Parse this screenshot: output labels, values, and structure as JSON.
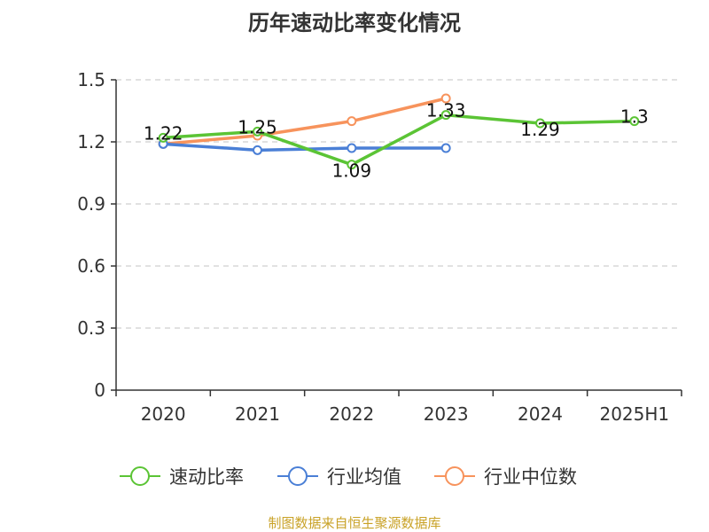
{
  "chart_data": {
    "type": "line",
    "title": "历年速动比率变化情况",
    "categories": [
      "2020",
      "2021",
      "2022",
      "2023",
      "2024",
      "2025H1"
    ],
    "ylim": [
      0,
      1.5
    ],
    "yticks": [
      "0",
      "0.3",
      "0.6",
      "0.9",
      "1.2",
      "1.5"
    ],
    "grid": true,
    "legend_position": "bottom",
    "series": [
      {
        "name": "速动比率",
        "color": "#5bc435",
        "values": [
          1.22,
          1.25,
          1.09,
          1.33,
          1.29,
          1.3
        ],
        "labels": [
          "1.22",
          "1.25",
          "1.09",
          "1.33",
          "1.29",
          "1.3"
        ]
      },
      {
        "name": "行业均值",
        "color": "#4a7fd6",
        "values": [
          1.19,
          1.16,
          1.17,
          1.17,
          null,
          null
        ]
      },
      {
        "name": "行业中位数",
        "color": "#f7935c",
        "values": [
          1.19,
          1.23,
          1.3,
          1.41,
          null,
          null
        ]
      }
    ]
  },
  "source": "制图数据来自恒生聚源数据库"
}
